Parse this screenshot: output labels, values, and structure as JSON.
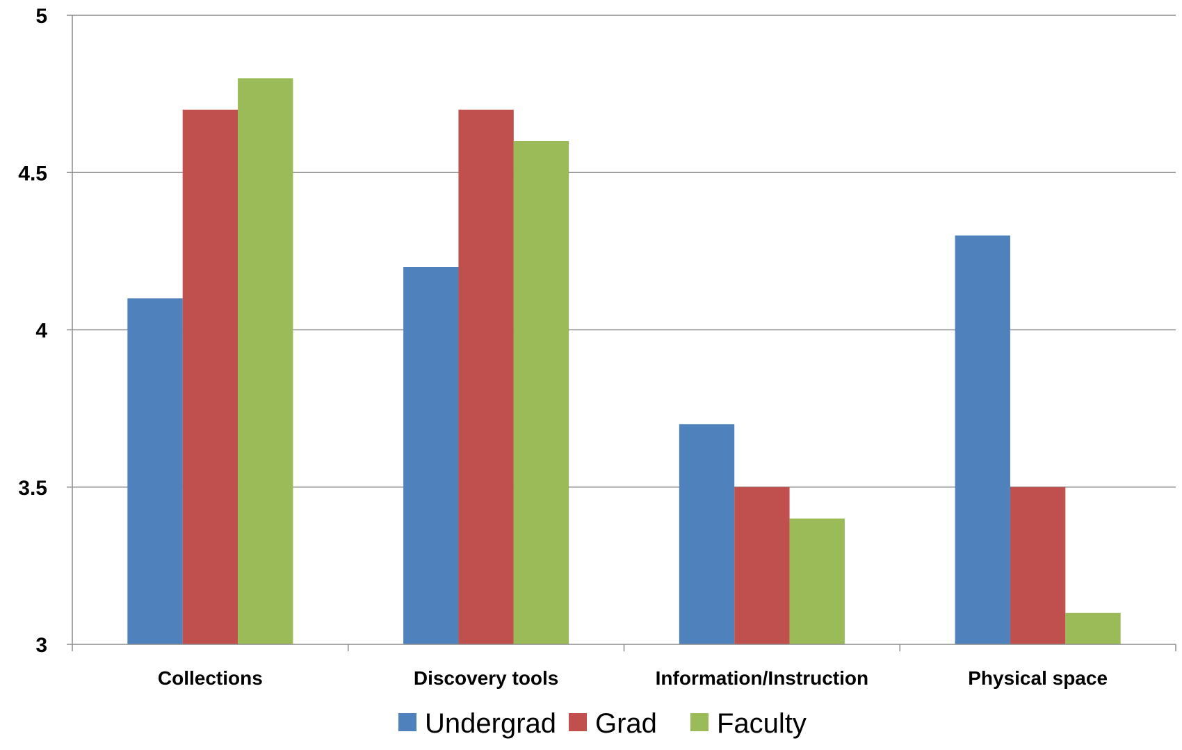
{
  "chart_data": {
    "type": "bar",
    "categories": [
      "Collections",
      "Discovery tools",
      "Information/Instruction",
      "Physical space"
    ],
    "series": [
      {
        "name": "Undergrad",
        "color": "#4F81BD",
        "values": [
          4.1,
          4.2,
          3.7,
          4.3
        ]
      },
      {
        "name": "Grad",
        "color": "#C0504D",
        "values": [
          4.7,
          4.7,
          3.5,
          3.5
        ]
      },
      {
        "name": "Faculty",
        "color": "#9BBB59",
        "values": [
          4.8,
          4.6,
          3.4,
          3.1
        ]
      }
    ],
    "ylim": [
      3,
      5
    ],
    "yticks": [
      3,
      3.5,
      4,
      4.5,
      5
    ],
    "ytick_labels": [
      "3",
      "3.5",
      "4",
      "4.5",
      "5"
    ],
    "title": "",
    "xlabel": "",
    "ylabel": "",
    "grid": true,
    "legend_position": "bottom-center"
  }
}
